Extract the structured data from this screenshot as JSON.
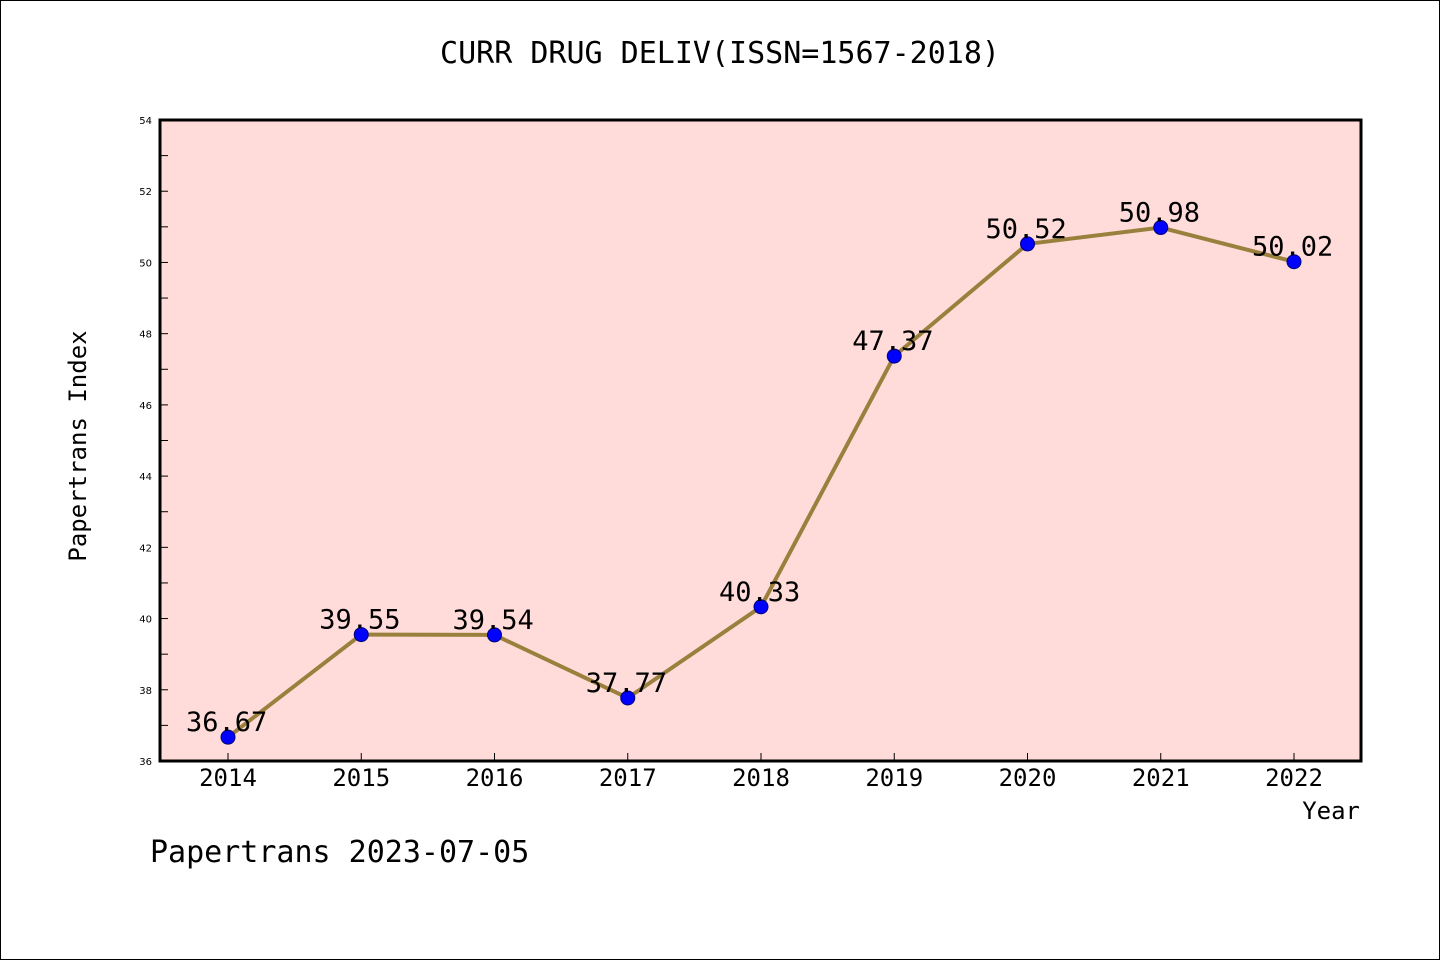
{
  "chart_data": {
    "type": "line",
    "title": "CURR DRUG DELIV(ISSN=1567-2018)",
    "xlabel": "Year",
    "ylabel": "Papertrans Index",
    "categories": [
      "2014",
      "2015",
      "2016",
      "2017",
      "2018",
      "2019",
      "2020",
      "2021",
      "2022"
    ],
    "values": [
      36.67,
      39.55,
      39.54,
      37.77,
      40.33,
      47.37,
      50.52,
      50.98,
      50.02
    ],
    "data_labels": [
      "36.67",
      "39.55",
      "39.54",
      "37.77",
      "40.33",
      "47.37",
      "50.52",
      "50.98",
      "50.02"
    ],
    "ylim": [
      36,
      54
    ],
    "yticks": [
      "36",
      "38",
      "40",
      "42",
      "44",
      "46",
      "48",
      "50",
      "52",
      "54"
    ],
    "colors": {
      "plot_background": "#FFDCDA",
      "line": "#9B7F3C",
      "marker": "#0000FF"
    },
    "grid": false,
    "legend": "none"
  },
  "footer": "Papertrans 2023-07-05"
}
